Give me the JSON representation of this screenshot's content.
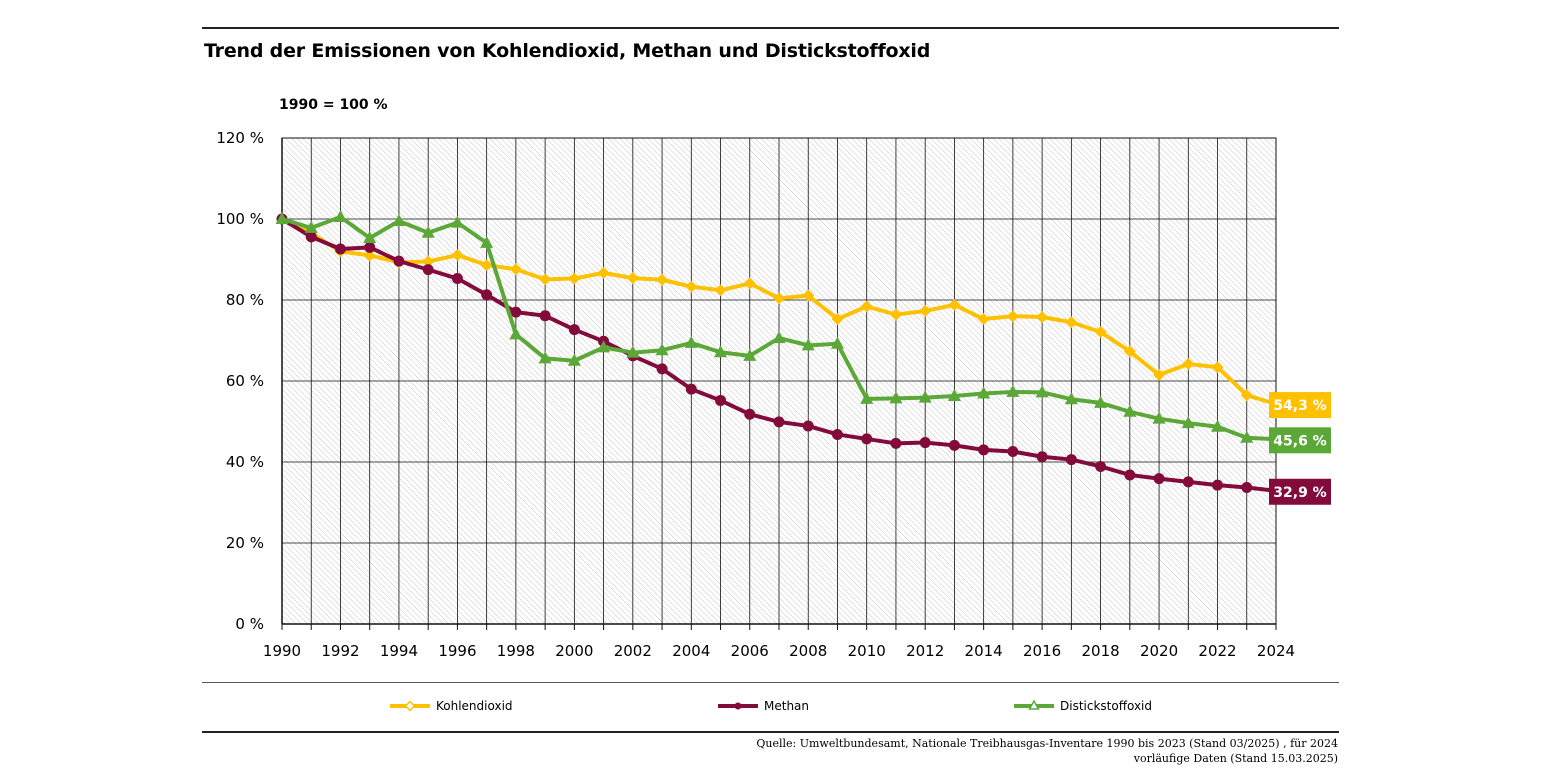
{
  "title": "Trend der Emissionen von Kohlendioxid, Methan und Distickstoffoxid",
  "subtitle": "1990 = 100 %",
  "chart_data": {
    "type": "line",
    "title": "Trend der Emissionen von Kohlendioxid, Methan und Distickstoffoxid",
    "xlabel": "",
    "ylabel": "1990 = 100 %",
    "x": [
      1990,
      1991,
      1992,
      1993,
      1994,
      1995,
      1996,
      1997,
      1998,
      1999,
      2000,
      2001,
      2002,
      2003,
      2004,
      2005,
      2006,
      2007,
      2008,
      2009,
      2010,
      2011,
      2012,
      2013,
      2014,
      2015,
      2016,
      2017,
      2018,
      2019,
      2020,
      2021,
      2022,
      2023,
      2024
    ],
    "x_ticks": [
      "1990",
      "1992",
      "1994",
      "1996",
      "1998",
      "2000",
      "2002",
      "2004",
      "2006",
      "2008",
      "2010",
      "2012",
      "2014",
      "2016",
      "2018",
      "2020",
      "2022",
      "2024"
    ],
    "y_ticks": [
      "0 %",
      "20 %",
      "40 %",
      "60 %",
      "80 %",
      "100 %",
      "120 %"
    ],
    "ylim": [
      0,
      120
    ],
    "grid": true,
    "legend_position": "bottom",
    "series": [
      {
        "name": "Kohlendioxid",
        "color": "#FFC000",
        "marker": "diamond",
        "values": [
          100,
          96.5,
          92.0,
          91.0,
          89.3,
          89.5,
          91.1,
          88.6,
          87.6,
          85.1,
          85.3,
          86.7,
          85.4,
          85.0,
          83.3,
          82.4,
          84.1,
          80.4,
          81.1,
          75.3,
          78.4,
          76.4,
          77.3,
          78.8,
          75.3,
          76.0,
          75.8,
          74.5,
          72.1,
          67.3,
          61.5,
          64.2,
          63.4,
          56.5,
          54.3
        ],
        "end_label": "54,3 %"
      },
      {
        "name": "Methan",
        "color": "#830B3B",
        "marker": "circle",
        "values": [
          100,
          95.6,
          92.6,
          93.0,
          89.6,
          87.5,
          85.3,
          81.3,
          77.0,
          76.1,
          72.7,
          69.8,
          66.2,
          63.0,
          58.0,
          55.2,
          51.8,
          49.9,
          48.9,
          46.8,
          45.7,
          44.6,
          44.8,
          44.1,
          43.0,
          42.6,
          41.3,
          40.6,
          38.9,
          36.8,
          35.9,
          35.1,
          34.3,
          33.7,
          32.9
        ],
        "end_label": "32,9 %"
      },
      {
        "name": "Distickstoffoxid",
        "color": "#5BA838",
        "marker": "triangle",
        "values": [
          100,
          97.8,
          100.5,
          95.3,
          99.5,
          96.6,
          99.1,
          94.1,
          71.5,
          65.6,
          65.0,
          68.3,
          67.0,
          67.6,
          69.4,
          67.1,
          66.2,
          70.6,
          68.8,
          69.2,
          55.6,
          55.7,
          55.9,
          56.3,
          56.9,
          57.3,
          57.2,
          55.5,
          54.6,
          52.4,
          50.7,
          49.6,
          48.7,
          46.0,
          45.6
        ],
        "end_label": "45,6 %"
      }
    ]
  },
  "source": {
    "line1": "Quelle: Umweltbundesamt, Nationale Treibhausgas-Inventare 1990 bis 2023 (Stand 03/2025) , für 2024",
    "line2": "vorläufige Daten (Stand 15.03.2025)"
  }
}
